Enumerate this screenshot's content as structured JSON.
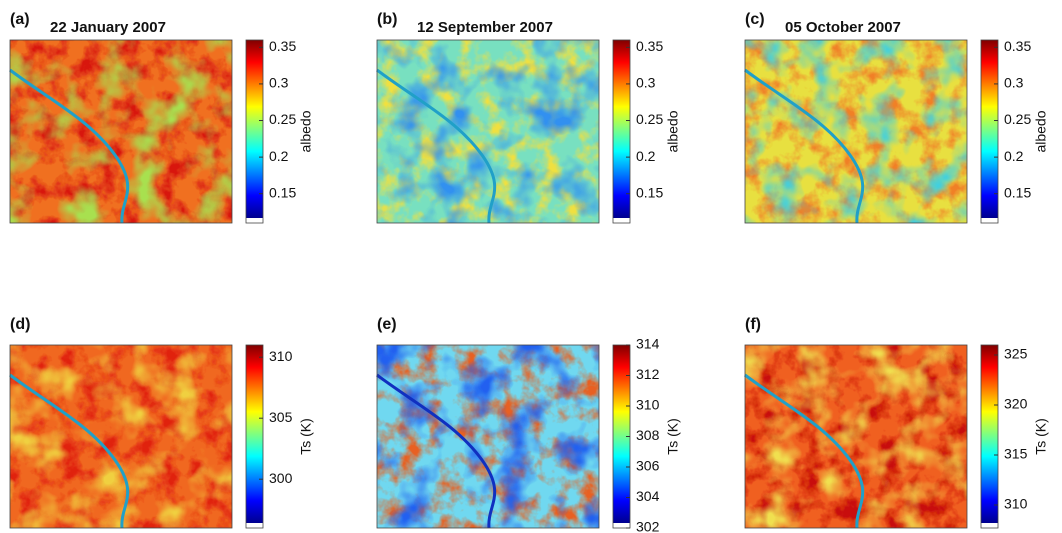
{
  "panels": [
    {
      "label": "(a)",
      "title": "22 January 2007",
      "colorbar": {
        "label": "albedo",
        "lim": [
          0.11,
          0.36
        ],
        "ticks": [
          0.15,
          0.2,
          0.25,
          0.3,
          0.35
        ]
      }
    },
    {
      "label": "(b)",
      "title": "12 September 2007",
      "colorbar": {
        "label": "albedo",
        "lim": [
          0.11,
          0.36
        ],
        "ticks": [
          0.15,
          0.2,
          0.25,
          0.3,
          0.35
        ]
      }
    },
    {
      "label": "(c)",
      "title": "05 October 2007",
      "colorbar": {
        "label": "albedo",
        "lim": [
          0.11,
          0.36
        ],
        "ticks": [
          0.15,
          0.2,
          0.25,
          0.3,
          0.35
        ]
      }
    },
    {
      "label": "(d)",
      "colorbar": {
        "label": "Ts (K)",
        "lim": [
          296,
          311
        ],
        "ticks": [
          300,
          305,
          310
        ]
      }
    },
    {
      "label": "(e)",
      "colorbar": {
        "label": "Ts (K)",
        "lim": [
          302,
          314
        ],
        "ticks": [
          302,
          304,
          306,
          308,
          310,
          312,
          314
        ]
      }
    },
    {
      "label": "(f)",
      "colorbar": {
        "label": "Ts (K)",
        "lim": [
          307.7,
          326
        ],
        "ticks": [
          310,
          315,
          320,
          325
        ]
      }
    }
  ]
}
